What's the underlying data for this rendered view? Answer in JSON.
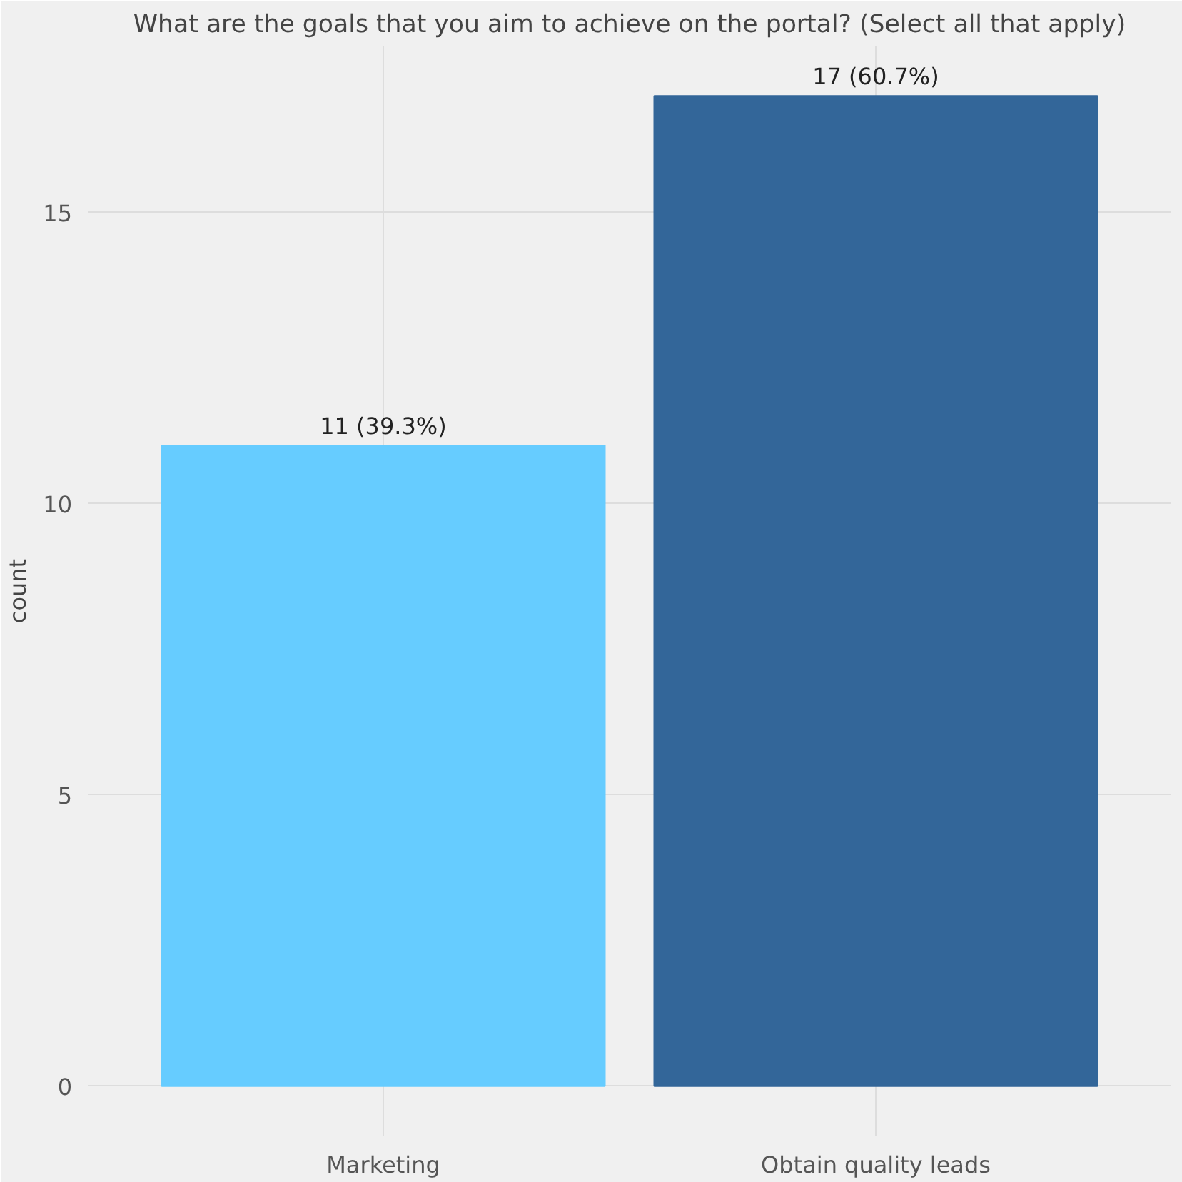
{
  "chart_data": {
    "type": "bar",
    "title": "What are the goals that you aim to achieve on the portal? (Select all that apply)",
    "ylabel": "count",
    "categories": [
      "Marketing",
      "Obtain quality leads"
    ],
    "values": [
      11,
      17
    ],
    "colors": [
      "#66ccff",
      "#336699"
    ],
    "value_labels": [
      "11 (39.3%)",
      "17 (60.7%)"
    ],
    "ylim": [
      -0.85,
      17.85
    ],
    "yticks": [
      0,
      5,
      10,
      15
    ],
    "grid": true
  }
}
